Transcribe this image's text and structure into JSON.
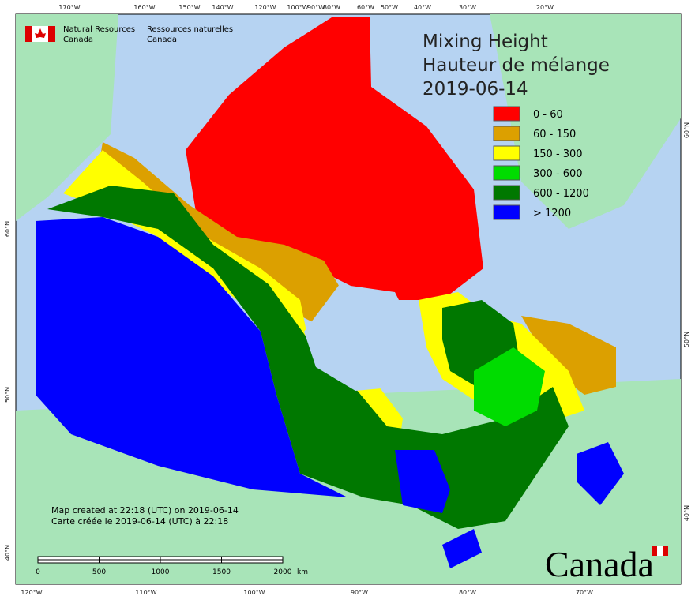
{
  "header": {
    "department_en": [
      "Natural Resources",
      "Canada"
    ],
    "department_fr": [
      "Ressources naturelles",
      "Canada"
    ]
  },
  "title": [
    "Mixing Height",
    "Hauteur de mélange",
    "2019-06-14"
  ],
  "legend": [
    {
      "label": "0 - 60",
      "color": "#ff0000"
    },
    {
      "label": "60 - 150",
      "color": "#dca000"
    },
    {
      "label": "150 - 300",
      "color": "#ffff00"
    },
    {
      "label": "300 - 600",
      "color": "#00dc00"
    },
    {
      "label": "600 - 1200",
      "color": "#007800"
    },
    {
      "label": "> 1200",
      "color": "#0000ff"
    }
  ],
  "graticule": {
    "top": [
      "170°W",
      "160°W",
      "150°W",
      "140°W",
      "120°W",
      "100°W",
      "90°W",
      "80°W",
      "60°W",
      "50°W",
      "40°W",
      "30°W",
      "20°W"
    ],
    "bottom": [
      "120°W",
      "110°W",
      "100°W",
      "90°W",
      "80°W",
      "70°W"
    ],
    "left": [
      "60°N",
      "50°N",
      "40°N"
    ],
    "right": [
      "60°N",
      "50°N",
      "40°N"
    ]
  },
  "credits": [
    "Map created at 22:18 (UTC) on 2019-06-14",
    "Carte créée le 2019-06-14 (UTC) à 22:18"
  ],
  "scale_bar": {
    "labels": [
      "0",
      "500",
      "1000",
      "1500",
      "2000"
    ],
    "unit": "km"
  },
  "wordmark": "Canada"
}
